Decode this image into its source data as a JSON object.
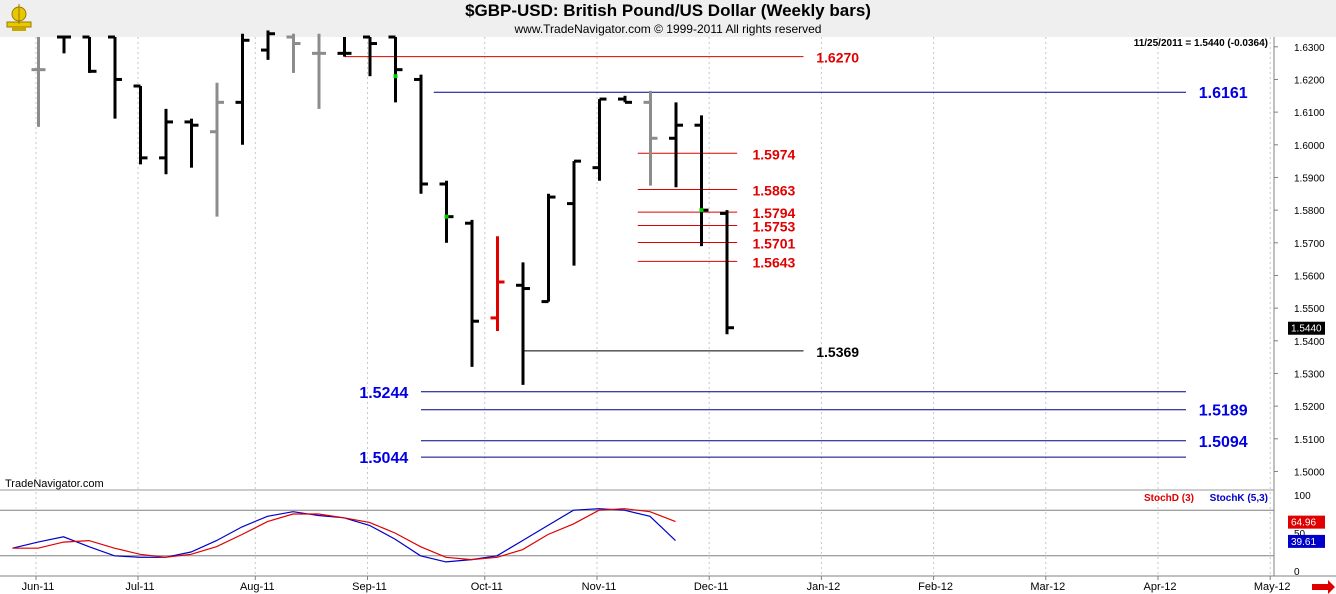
{
  "header": {
    "title": "$GBP-USD:  British Pound/US Dollar  (Weekly bars)",
    "copyright": "www.TradeNavigator.com © 1999-2011 All rights reserved"
  },
  "logo": {
    "icon": "trade-navigator-logo-icon"
  },
  "chart_data": [
    {
      "type": "ohlc",
      "title": "$GBP-USD:  British Pound/US Dollar  (Weekly bars)",
      "last_value_readout": "11/25/2011 = 1.5440 (-0.0364)",
      "last_value_label": "1.5440",
      "watermark": "TradeNavigator.com",
      "ylim": [
        1.498,
        1.633
      ],
      "y_ticks": [
        "1.5000",
        "1.5100",
        "1.5200",
        "1.5300",
        "1.5400",
        "1.5500",
        "1.5600",
        "1.5700",
        "1.5800",
        "1.5900",
        "1.6000",
        "1.6100",
        "1.6200",
        "1.6300"
      ],
      "x_labels": [
        {
          "label": "Jun-11",
          "pos": 0
        },
        {
          "label": "Jul-11",
          "pos": 4
        },
        {
          "label": "Aug-11",
          "pos": 8.6
        },
        {
          "label": "Sep-11",
          "pos": 13
        },
        {
          "label": "Oct-11",
          "pos": 17.6
        },
        {
          "label": "Nov-11",
          "pos": 22
        },
        {
          "label": "Dec-11",
          "pos": 26.4
        },
        {
          "label": "Jan-12",
          "pos": 30.8
        },
        {
          "label": "Feb-12",
          "pos": 35.2
        },
        {
          "label": "Mar-12",
          "pos": 39.6
        },
        {
          "label": "Apr-12",
          "pos": 44
        },
        {
          "label": "May-12",
          "pos": 48.4
        }
      ],
      "bars": [
        {
          "x": -1,
          "o": 1.623,
          "h": 1.633,
          "l": 1.6055,
          "c": 1.623,
          "color": "#8c8c8c"
        },
        {
          "x": 0,
          "o": 1.633,
          "h": 1.633,
          "l": 1.628,
          "c": 1.633,
          "color": "#000000"
        },
        {
          "x": 1,
          "o": 1.633,
          "h": 1.633,
          "l": 1.622,
          "c": 1.6225,
          "color": "#000000"
        },
        {
          "x": 2,
          "o": 1.633,
          "h": 1.633,
          "l": 1.608,
          "c": 1.62,
          "color": "#000000"
        },
        {
          "x": 3,
          "o": 1.618,
          "h": 1.618,
          "l": 1.594,
          "c": 1.596,
          "color": "#000000"
        },
        {
          "x": 4,
          "o": 1.596,
          "h": 1.611,
          "l": 1.591,
          "c": 1.607,
          "color": "#000000"
        },
        {
          "x": 5,
          "o": 1.607,
          "h": 1.608,
          "l": 1.593,
          "c": 1.606,
          "color": "#000000"
        },
        {
          "x": 6,
          "o": 1.604,
          "h": 1.619,
          "l": 1.578,
          "c": 1.613,
          "color": "#8c8c8c"
        },
        {
          "x": 7,
          "o": 1.613,
          "h": 1.634,
          "l": 1.6,
          "c": 1.632,
          "color": "#000000"
        },
        {
          "x": 8,
          "o": 1.629,
          "h": 1.635,
          "l": 1.626,
          "c": 1.634,
          "color": "#000000"
        },
        {
          "x": 9,
          "o": 1.633,
          "h": 1.634,
          "l": 1.622,
          "c": 1.631,
          "color": "#8c8c8c"
        },
        {
          "x": 10,
          "o": 1.628,
          "h": 1.634,
          "l": 1.611,
          "c": 1.628,
          "color": "#8c8c8c"
        },
        {
          "x": 11,
          "o": 1.628,
          "h": 1.633,
          "l": 1.627,
          "c": 1.628,
          "color": "#000000"
        },
        {
          "x": 12,
          "o": 1.633,
          "h": 1.633,
          "l": 1.621,
          "c": 1.631,
          "color": "#000000"
        },
        {
          "x": 13,
          "o": 1.633,
          "h": 1.633,
          "l": 1.613,
          "c": 1.623,
          "color": "#000000"
        },
        {
          "x": 14,
          "o": 1.62,
          "h": 1.6215,
          "l": 1.585,
          "c": 1.588,
          "color": "#000000"
        },
        {
          "x": 15,
          "o": 1.588,
          "h": 1.589,
          "l": 1.57,
          "c": 1.578,
          "color": "#000000"
        },
        {
          "x": 16,
          "o": 1.576,
          "h": 1.577,
          "l": 1.532,
          "c": 1.546,
          "color": "#000000"
        },
        {
          "x": 17,
          "o": 1.547,
          "h": 1.572,
          "l": 1.543,
          "c": 1.558,
          "color": "#e00000"
        },
        {
          "x": 18,
          "o": 1.557,
          "h": 1.564,
          "l": 1.5265,
          "c": 1.556,
          "color": "#000000"
        },
        {
          "x": 19,
          "o": 1.552,
          "h": 1.585,
          "l": 1.552,
          "c": 1.584,
          "color": "#000000"
        },
        {
          "x": 20,
          "o": 1.582,
          "h": 1.595,
          "l": 1.563,
          "c": 1.595,
          "color": "#000000"
        },
        {
          "x": 21,
          "o": 1.593,
          "h": 1.614,
          "l": 1.589,
          "c": 1.614,
          "color": "#000000"
        },
        {
          "x": 22,
          "o": 1.614,
          "h": 1.615,
          "l": 1.613,
          "c": 1.613,
          "color": "#000000"
        },
        {
          "x": 23,
          "o": 1.613,
          "h": 1.6165,
          "l": 1.5875,
          "c": 1.602,
          "color": "#8c8c8c"
        },
        {
          "x": 24,
          "o": 1.602,
          "h": 1.613,
          "l": 1.587,
          "c": 1.606,
          "color": "#000000"
        },
        {
          "x": 25,
          "o": 1.606,
          "h": 1.609,
          "l": 1.569,
          "c": 1.58,
          "color": "#000000"
        },
        {
          "x": 26,
          "o": 1.579,
          "h": 1.58,
          "l": 1.542,
          "c": 1.544,
          "color": "#000000"
        }
      ],
      "green_marks": [
        {
          "x": 13,
          "y": 1.621
        },
        {
          "x": 15,
          "y": 1.578
        },
        {
          "x": 25,
          "y": 1.58
        }
      ],
      "hlines": [
        {
          "y": 1.627,
          "from": 11,
          "to": 29,
          "color": "#e00000",
          "label": "1.6270",
          "label_pos": 29.5,
          "label_side": "right"
        },
        {
          "y": 1.6161,
          "from": 14.5,
          "to": 44,
          "color": "#00008c",
          "label": "1.6161",
          "label_pos": 44.5,
          "label_side": "right"
        },
        {
          "y": 1.5974,
          "from": 22.5,
          "to": 26.4,
          "color": "#e00000",
          "label": "1.5974",
          "label_pos": 27,
          "label_side": "right"
        },
        {
          "y": 1.5863,
          "from": 22.5,
          "to": 26.4,
          "color": "#e00000",
          "label": "1.5863",
          "label_pos": 27,
          "label_side": "right"
        },
        {
          "y": 1.5794,
          "from": 22.5,
          "to": 26.4,
          "color": "#e00000",
          "label": "1.5794",
          "label_pos": 27,
          "label_side": "right"
        },
        {
          "y": 1.5753,
          "from": 22.5,
          "to": 26.4,
          "color": "#e00000",
          "label": "1.5753",
          "label_pos": 27,
          "label_side": "right"
        },
        {
          "y": 1.5701,
          "from": 22.5,
          "to": 26.4,
          "color": "#e00000",
          "label": "1.5701",
          "label_pos": 27,
          "label_side": "right"
        },
        {
          "y": 1.5643,
          "from": 22.5,
          "to": 26.4,
          "color": "#e00000",
          "label": "1.5643",
          "label_pos": 27,
          "label_side": "right"
        },
        {
          "y": 1.5369,
          "from": 18,
          "to": 29,
          "color": "#000000",
          "label": "1.5369",
          "label_pos": 29.5,
          "label_side": "right"
        },
        {
          "y": 1.5244,
          "from": 14,
          "to": 44,
          "color": "#00008c",
          "label": "1.5244",
          "label_pos": 13.5,
          "label_side": "left"
        },
        {
          "y": 1.5189,
          "from": 14,
          "to": 44,
          "color": "#00008c",
          "label": "1.5189",
          "label_pos": 44.5,
          "label_side": "right"
        },
        {
          "y": 1.5094,
          "from": 14,
          "to": 44,
          "color": "#00008c",
          "label": "1.5094",
          "label_pos": 44.5,
          "label_side": "right"
        },
        {
          "y": 1.5044,
          "from": 14,
          "to": 44,
          "color": "#00008c",
          "label": "1.5044",
          "label_pos": 13.5,
          "label_side": "left"
        }
      ]
    },
    {
      "type": "line",
      "legend": [
        {
          "name": "StochD (3)",
          "color": "#e00000"
        },
        {
          "name": "StochK (5,3)",
          "color": "#0000c8"
        }
      ],
      "ylim": [
        0,
        100
      ],
      "y_ticks": [
        "100",
        "50",
        "0"
      ],
      "ref_lines": [
        80,
        20
      ],
      "value_labels": [
        {
          "value": "64.96",
          "y": 64.96,
          "bg": "#e00000"
        },
        {
          "value": "39.61",
          "y": 39.61,
          "bg": "#0000c8"
        }
      ],
      "x": [
        -1,
        0,
        1,
        2,
        3,
        4,
        5,
        6,
        7,
        8,
        9,
        10,
        11,
        12,
        13,
        14,
        15,
        16,
        17,
        18,
        19,
        20,
        21,
        22,
        23,
        24,
        25
      ],
      "series": [
        {
          "name": "StochK (5,3)",
          "color": "#0000c8",
          "values": [
            30,
            38,
            45,
            32,
            20,
            18,
            18,
            25,
            40,
            58,
            72,
            78,
            73,
            70,
            60,
            42,
            20,
            12,
            15,
            20,
            40,
            60,
            80,
            82,
            80,
            72,
            40
          ]
        },
        {
          "name": "StochD (3)",
          "color": "#e00000",
          "values": [
            30,
            30,
            38,
            40,
            30,
            22,
            18,
            22,
            32,
            48,
            65,
            75,
            75,
            70,
            64,
            50,
            32,
            18,
            15,
            18,
            28,
            48,
            62,
            80,
            82,
            78,
            65
          ]
        }
      ]
    }
  ]
}
